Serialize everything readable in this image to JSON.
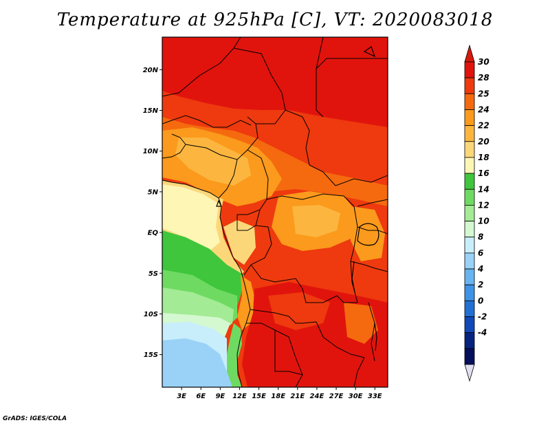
{
  "title": "Temperature at 925hPa [C], VT: 2020083018",
  "credit": "GrADS: IGES/COLA",
  "chart_data": {
    "type": "map",
    "variable": "Temperature at 925hPa",
    "units": "C",
    "valid_time": "2020083018",
    "lon_range": [
      0,
      35
    ],
    "lat_range": [
      -19,
      24
    ],
    "lat_ticks": [
      {
        "value": 20,
        "label": "20N"
      },
      {
        "value": 15,
        "label": "15N"
      },
      {
        "value": 10,
        "label": "10N"
      },
      {
        "value": 5,
        "label": "5N"
      },
      {
        "value": 0,
        "label": "EQ"
      },
      {
        "value": -5,
        "label": "5S"
      },
      {
        "value": -10,
        "label": "10S"
      },
      {
        "value": -15,
        "label": "15S"
      }
    ],
    "lon_ticks": [
      {
        "value": 3,
        "label": "3E"
      },
      {
        "value": 6,
        "label": "6E"
      },
      {
        "value": 9,
        "label": "9E"
      },
      {
        "value": 12,
        "label": "12E"
      },
      {
        "value": 15,
        "label": "15E"
      },
      {
        "value": 18,
        "label": "18E"
      },
      {
        "value": 21,
        "label": "21E"
      },
      {
        "value": 24,
        "label": "24E"
      },
      {
        "value": 27,
        "label": "27E"
      },
      {
        "value": 30,
        "label": "30E"
      },
      {
        "value": 33,
        "label": "33E"
      }
    ],
    "colorbar": {
      "levels": [
        "30",
        "28",
        "25",
        "24",
        "22",
        "20",
        "18",
        "16",
        "14",
        "12",
        "10",
        "8",
        "6",
        "4",
        "2",
        "0",
        "-2",
        "-4"
      ],
      "colors": [
        "#e0140d",
        "#ee3a0e",
        "#f56a0f",
        "#fb9a1c",
        "#fcb640",
        "#fcd77a",
        "#fdf6b5",
        "#3fc63c",
        "#6fda62",
        "#a3eb95",
        "#d4f8d0",
        "#c8eefc",
        "#9ad2f7",
        "#68b4f0",
        "#3f93e6",
        "#2370d4",
        "#1149b8",
        "#08237f",
        "#060f5c"
      ],
      "top_arrow_color": "#d51a0c",
      "bottom_arrow_color": "#e2dff2"
    }
  }
}
